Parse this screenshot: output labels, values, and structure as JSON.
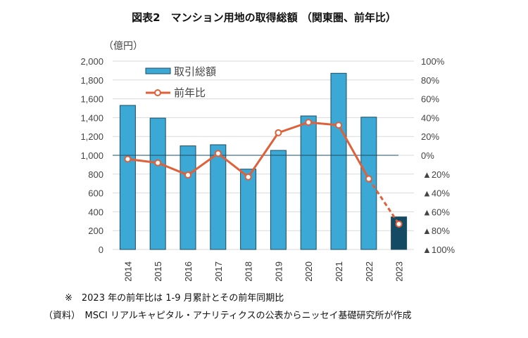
{
  "chart_data": {
    "type": "bar+line",
    "title": "図表2　マンション用地の取得総額 （関東圏、前年比）",
    "left_unit": "（億円）",
    "categories": [
      "2014",
      "2015",
      "2016",
      "2017",
      "2018",
      "2019",
      "2020",
      "2021",
      "2022",
      "2023"
    ],
    "series": [
      {
        "name": "取引総額",
        "type": "bar",
        "axis": "left",
        "values": [
          1530,
          1395,
          1100,
          1112,
          853,
          1052,
          1418,
          1871,
          1405,
          346
        ],
        "color": "#3ca8d6",
        "highlight_color": "#144a63"
      },
      {
        "name": "前年比",
        "type": "line",
        "axis": "right",
        "values": [
          -4,
          -8,
          -21,
          2,
          -23,
          24,
          35,
          32,
          -25,
          -73
        ],
        "color": "#e0603a",
        "last_segment": "dashed"
      }
    ],
    "ylim_left": [
      0,
      2000
    ],
    "ylim_right": [
      -100,
      100
    ],
    "left_ticks": [
      "0",
      "200",
      "400",
      "600",
      "800",
      "1,000",
      "1,200",
      "1,400",
      "1,600",
      "1,800",
      "2,000"
    ],
    "right_ticks": [
      "▲100%",
      "▲80%",
      "▲60%",
      "▲40%",
      "▲20%",
      "0%",
      "20%",
      "40%",
      "60%",
      "80%",
      "100%"
    ],
    "grid": true,
    "legend": "top-left"
  },
  "notes": {
    "line1": "※　2023 年の前年比は 1-9 月累計とその前年同期比",
    "line2": "（資料）　MSCI リアルキャピタル・アナリティクスの公表からニッセイ基礎研究所が作成"
  }
}
